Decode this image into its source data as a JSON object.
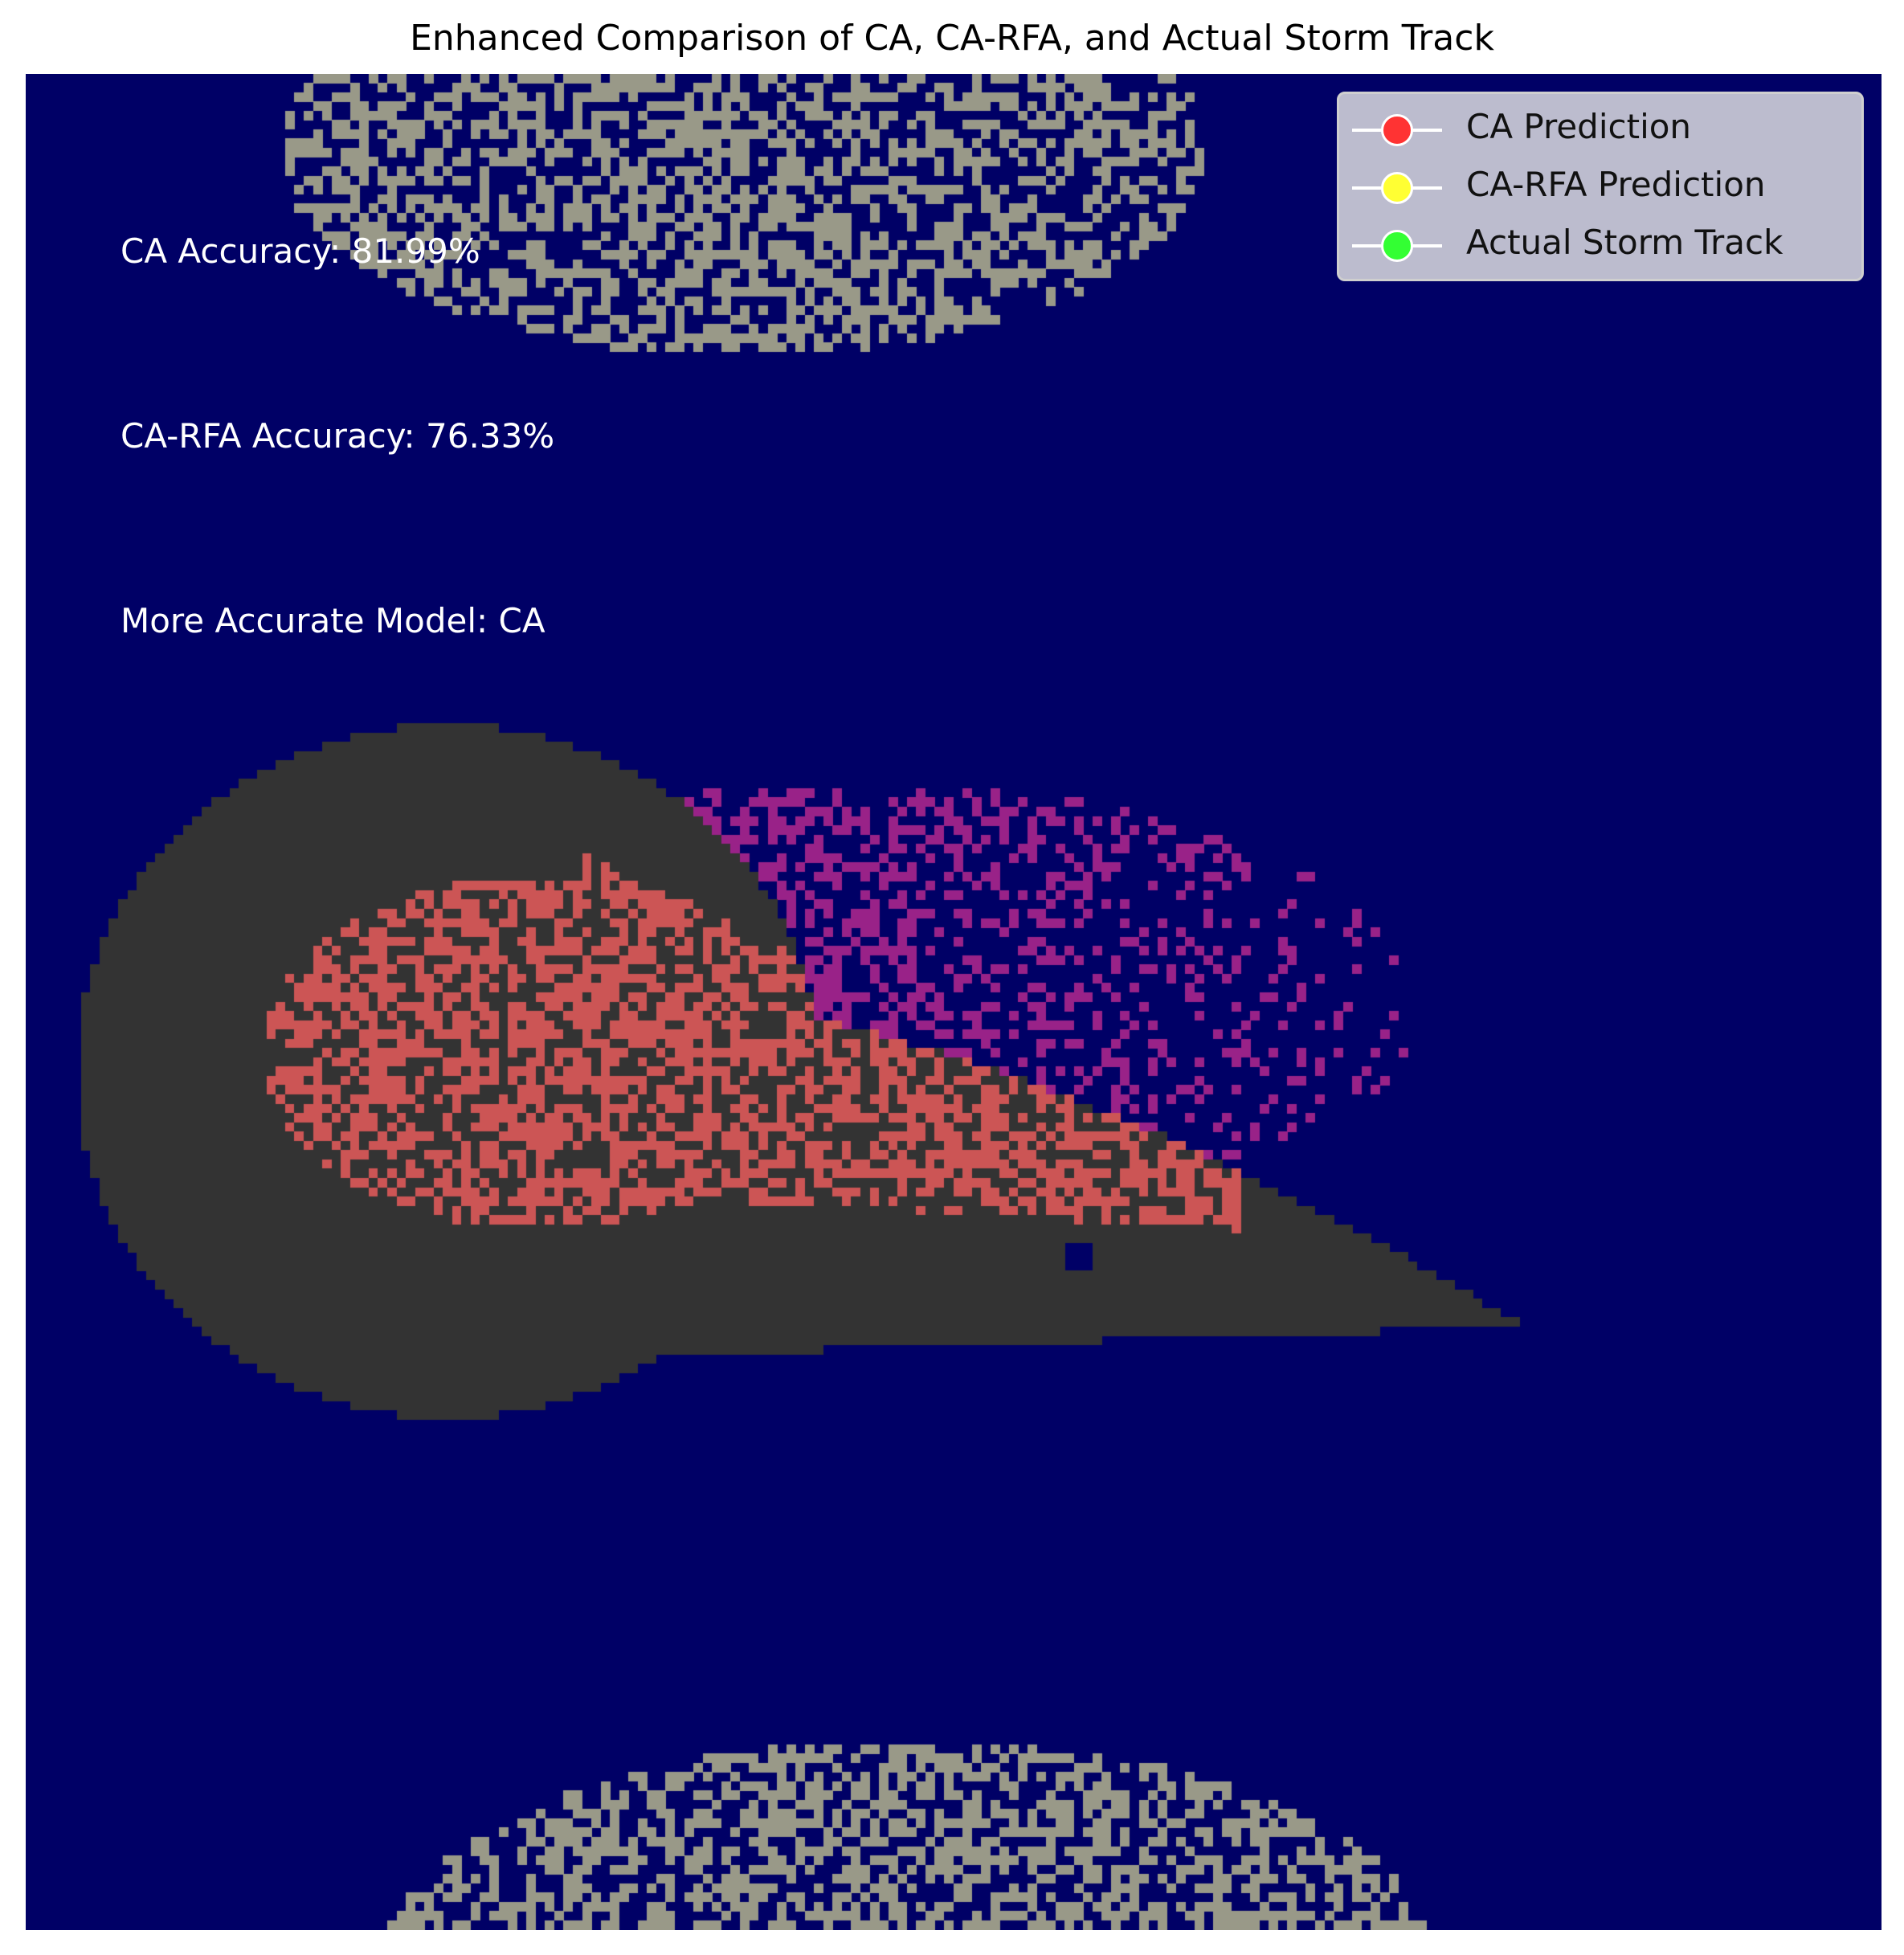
{
  "chart": {
    "title": "Enhanced Comparison of CA, CA-RFA, and Actual Storm Track"
  },
  "annotations": {
    "ca_accuracy": "CA Accuracy: 81.99%",
    "carfa_accuracy": "CA-RFA Accuracy: 76.33%",
    "best_model": "More Accurate Model: CA"
  },
  "legend": {
    "placement": "top-right",
    "items": [
      {
        "label": "CA Prediction",
        "color": "#ff3333"
      },
      {
        "label": "CA-RFA Prediction",
        "color": "#ffff33"
      },
      {
        "label": "Actual Storm Track",
        "color": "#33ff33"
      }
    ]
  },
  "chart_data": {
    "type": "heatmap",
    "title": "Enhanced Comparison of CA, CA-RFA, and Actual Storm Track",
    "xlabel": "",
    "ylabel": "",
    "axes_visible": false,
    "grid": false,
    "grid_size": 200,
    "colors": {
      "background": "#000066",
      "actual_track": "#333333",
      "ca_prediction": "#cc5555",
      "carfa_prediction": "#992288",
      "speckle": "#999988"
    },
    "series": [
      {
        "name": "CA Prediction",
        "color": "#ff3333"
      },
      {
        "name": "CA-RFA Prediction",
        "color": "#ffff33"
      },
      {
        "name": "Actual Storm Track",
        "color": "#33ff33"
      }
    ],
    "accuracy": {
      "CA": 81.99,
      "CA-RFA": 76.33
    },
    "more_accurate_model": "CA"
  }
}
